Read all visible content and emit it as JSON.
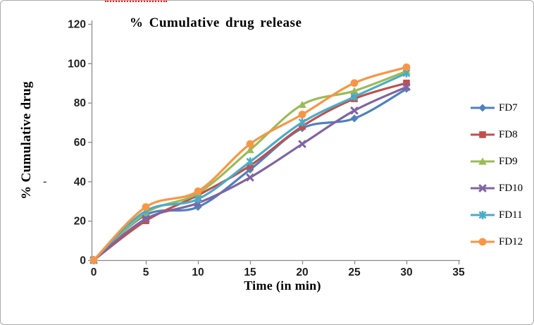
{
  "page": {
    "spellcheck_artifact_color": "#ff0000",
    "y_axis_artifact_text": "-",
    "border_color": "#ababab"
  },
  "chart_data": {
    "type": "line",
    "title": "% Cumulative drug release",
    "xlabel": "Time (in min)",
    "ylabel": "% Cumulative drug",
    "x": [
      0,
      5,
      10,
      15,
      20,
      25,
      30
    ],
    "xlim": [
      0,
      35
    ],
    "ylim": [
      0,
      120
    ],
    "x_ticks": [
      0,
      5,
      10,
      15,
      20,
      25,
      30,
      35
    ],
    "y_ticks": [
      0,
      20,
      40,
      60,
      80,
      100,
      120
    ],
    "grid": false,
    "legend_position": "right",
    "axis_color": "#8c8c8c",
    "tick_label_color": "#1f1f1f",
    "series": [
      {
        "name": "FD7",
        "color": "#4F81BD",
        "marker": "diamond",
        "values": [
          0,
          23,
          27,
          46,
          67,
          72,
          87
        ]
      },
      {
        "name": "FD8",
        "color": "#C0504D",
        "marker": "square",
        "values": [
          0,
          20,
          33,
          48,
          68,
          82,
          90
        ]
      },
      {
        "name": "FD9",
        "color": "#9BBB59",
        "marker": "triangle",
        "values": [
          0,
          24,
          34,
          56,
          79,
          86,
          96
        ]
      },
      {
        "name": "FD10",
        "color": "#8064A2",
        "marker": "x",
        "values": [
          0,
          21,
          29,
          42,
          59,
          76,
          88
        ]
      },
      {
        "name": "FD11",
        "color": "#4BACC6",
        "marker": "asterisk",
        "values": [
          0,
          25,
          31,
          50,
          70,
          83,
          95
        ]
      },
      {
        "name": "FD12",
        "color": "#F79646",
        "marker": "circle",
        "values": [
          0,
          27,
          35,
          59,
          74,
          90,
          98
        ]
      }
    ]
  }
}
